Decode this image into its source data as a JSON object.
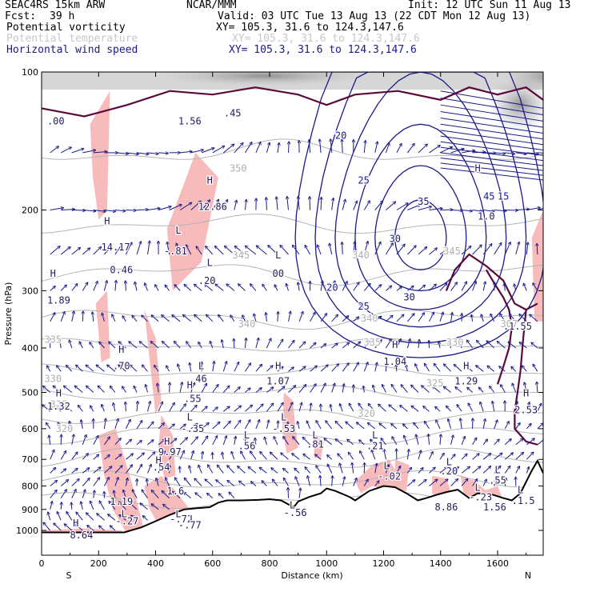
{
  "header": {
    "model": "SEAC4RS 15km ARW",
    "org": "NCAR/MMM",
    "init": "Init: 12 UTC Sun 11 Aug 13",
    "fcst_label": "Fcst:",
    "fcst_value": "39 h",
    "valid": "Valid: 03 UTC Tue 13 Aug 13 (22 CDT Mon 12 Aug 13)",
    "fields": [
      {
        "name": "Potential vorticity",
        "xy": "XY= 105.3, 31.6 to 124.3,147.6",
        "color": "#000000"
      },
      {
        "name": "Potential temperature",
        "xy": "XY= 105.3, 31.6 to 124.3,147.6",
        "color": "#c8c8c8"
      },
      {
        "name": "Horizontal wind speed",
        "xy": "XY= 105.3, 31.6 to 124.3,147.6",
        "color": "#1a1a8c"
      }
    ]
  },
  "chart_data": {
    "type": "contour",
    "xlabel": "Distance (km)",
    "ylabel": "Pressure (hPa)",
    "xlim": [
      0,
      1760
    ],
    "ylim": [
      1050,
      100
    ],
    "x_ticks": [
      0,
      200,
      400,
      600,
      800,
      1000,
      1200,
      1400,
      1600
    ],
    "y_ticks": [
      100,
      200,
      300,
      400,
      500,
      600,
      700,
      800,
      900,
      1000
    ],
    "y_log_scale": true,
    "x_end_labels": [
      "S",
      "N"
    ],
    "colors": {
      "terrain": "#000000",
      "theta": "#b4b4b4",
      "wind": "#1a1a8c",
      "pv_fill": "#f7b7b7",
      "pv_contour": "#5a0a3a",
      "vectors": "#1a1a8c"
    },
    "theta_labels": [
      {
        "text": "335",
        "x": 40,
        "p": 390
      },
      {
        "text": "330",
        "x": 40,
        "p": 475
      },
      {
        "text": "325",
        "x": 60,
        "p": 540
      },
      {
        "text": "320",
        "x": 80,
        "p": 610
      },
      {
        "text": "345",
        "x": 700,
        "p": 255
      },
      {
        "text": "340",
        "x": 720,
        "p": 360
      },
      {
        "text": "340",
        "x": 1120,
        "p": 255
      },
      {
        "text": "340",
        "x": 1150,
        "p": 350
      },
      {
        "text": "335",
        "x": 1160,
        "p": 395
      },
      {
        "text": "330",
        "x": 1450,
        "p": 395
      },
      {
        "text": "325",
        "x": 1380,
        "p": 485
      },
      {
        "text": "320",
        "x": 1140,
        "p": 565
      },
      {
        "text": "307",
        "x": 1640,
        "p": 360
      },
      {
        "text": "345",
        "x": 1440,
        "p": 250
      },
      {
        "text": "350",
        "x": 690,
        "p": 165
      }
    ],
    "wind_labels": [
      {
        "text": "20",
        "x": 1050,
        "p": 140
      },
      {
        "text": "25",
        "x": 1130,
        "p": 175
      },
      {
        "text": "30",
        "x": 1240,
        "p": 235
      },
      {
        "text": "35",
        "x": 1340,
        "p": 195
      },
      {
        "text": "20",
        "x": 1020,
        "p": 300
      },
      {
        "text": "25",
        "x": 1130,
        "p": 330
      },
      {
        "text": "30",
        "x": 1290,
        "p": 315
      },
      {
        "text": "45",
        "x": 1570,
        "p": 190
      },
      {
        "text": "15",
        "x": 1620,
        "p": 190
      }
    ],
    "pv_labels": [
      {
        "text": "H",
        "x": 40,
        "p": 280
      },
      {
        "text": "1.89",
        "x": 60,
        "p": 320
      },
      {
        "text": "H",
        "x": 230,
        "p": 215
      },
      {
        "text": "14.17",
        "x": 260,
        "p": 245
      },
      {
        "text": "0.46",
        "x": 280,
        "p": 275
      },
      {
        "text": "H",
        "x": 590,
        "p": 175
      },
      {
        "text": "12.86",
        "x": 600,
        "p": 200
      },
      {
        "text": "L",
        "x": 480,
        "p": 225
      },
      {
        "text": "-.81",
        "x": 470,
        "p": 250
      },
      {
        "text": "L",
        "x": 590,
        "p": 265
      },
      {
        "text": ".20",
        "x": 580,
        "p": 290
      },
      {
        "text": "L",
        "x": 830,
        "p": 255
      },
      {
        "text": "00",
        "x": 830,
        "p": 280
      },
      {
        "text": "H",
        "x": 280,
        "p": 410
      },
      {
        "text": ".70",
        "x": 280,
        "p": 445
      },
      {
        "text": "L",
        "x": 560,
        "p": 445
      },
      {
        "text": ".46",
        "x": 550,
        "p": 475
      },
      {
        "text": "H",
        "x": 520,
        "p": 490
      },
      {
        "text": ".55",
        "x": 530,
        "p": 525
      },
      {
        "text": "H",
        "x": 830,
        "p": 445
      },
      {
        "text": "1.07",
        "x": 830,
        "p": 480
      },
      {
        "text": "H",
        "x": 1240,
        "p": 400
      },
      {
        "text": "1.04",
        "x": 1240,
        "p": 435
      },
      {
        "text": "H",
        "x": 1490,
        "p": 445
      },
      {
        "text": "1.29",
        "x": 1490,
        "p": 480
      },
      {
        "text": "H",
        "x": 1700,
        "p": 510
      },
      {
        "text": "2.53",
        "x": 1700,
        "p": 555
      },
      {
        "text": "H",
        "x": 60,
        "p": 510
      },
      {
        "text": "1.32",
        "x": 60,
        "p": 545
      },
      {
        "text": "L",
        "x": 520,
        "p": 575
      },
      {
        "text": "-.35",
        "x": 530,
        "p": 610
      },
      {
        "text": "L",
        "x": 850,
        "p": 575
      },
      {
        "text": "-.53",
        "x": 850,
        "p": 610
      },
      {
        "text": "L",
        "x": 720,
        "p": 630
      },
      {
        "text": ".56",
        "x": 720,
        "p": 665
      },
      {
        "text": "L",
        "x": 960,
        "p": 630
      },
      {
        "text": ".81",
        "x": 960,
        "p": 660
      },
      {
        "text": "L",
        "x": 1170,
        "p": 630
      },
      {
        "text": ".21",
        "x": 1170,
        "p": 665
      },
      {
        "text": "H",
        "x": 440,
        "p": 650
      },
      {
        "text": "9.97",
        "x": 450,
        "p": 685
      },
      {
        "text": "H",
        "x": 410,
        "p": 715
      },
      {
        "text": ".54",
        "x": 420,
        "p": 740
      },
      {
        "text": "L",
        "x": 1210,
        "p": 735
      },
      {
        "text": "-.02",
        "x": 1220,
        "p": 775
      },
      {
        "text": "L",
        "x": 1430,
        "p": 720
      },
      {
        "text": ".20",
        "x": 1430,
        "p": 755
      },
      {
        "text": "L",
        "x": 1600,
        "p": 750
      },
      {
        "text": ".55",
        "x": 1600,
        "p": 790
      },
      {
        "text": "L",
        "x": 1530,
        "p": 820
      },
      {
        "text": "-.23",
        "x": 1540,
        "p": 860
      },
      {
        "text": "L",
        "x": 1680,
        "p": 830
      },
      {
        "text": ".1.5",
        "x": 1690,
        "p": 875
      },
      {
        "text": "1.19",
        "x": 280,
        "p": 880
      },
      {
        "text": "1.6",
        "x": 470,
        "p": 835
      },
      {
        "text": "L",
        "x": 290,
        "p": 935
      },
      {
        "text": "-.27",
        "x": 300,
        "p": 970
      },
      {
        "text": "L",
        "x": 480,
        "p": 935
      },
      {
        "text": "-.72",
        "x": 490,
        "p": 960
      },
      {
        "text": "L",
        "x": 530,
        "p": 960
      },
      {
        "text": "-.77",
        "x": 520,
        "p": 990
      },
      {
        "text": "L",
        "x": 880,
        "p": 895
      },
      {
        "text": "-.56",
        "x": 890,
        "p": 930
      },
      {
        "text": "8.86",
        "x": 1420,
        "p": 905
      },
      {
        "text": "1.56",
        "x": 1590,
        "p": 905
      },
      {
        "text": "H",
        "x": 120,
        "p": 980
      },
      {
        "text": "8.64",
        "x": 140,
        "p": 1040
      },
      {
        "text": "H",
        "x": 1530,
        "p": 165
      },
      {
        "text": "1.0",
        "x": 1560,
        "p": 210
      },
      {
        "text": ".1.55",
        "x": 1670,
        "p": 365
      },
      {
        "text": "1.56",
        "x": 520,
        "p": 130
      },
      {
        "text": ".00",
        "x": 50,
        "p": 130
      },
      {
        "text": ".45",
        "x": 670,
        "p": 125
      }
    ],
    "terrain_profile": [
      [
        0,
        1010
      ],
      [
        100,
        1010
      ],
      [
        200,
        1010
      ],
      [
        290,
        1010
      ],
      [
        350,
        985
      ],
      [
        400,
        955
      ],
      [
        450,
        925
      ],
      [
        500,
        900
      ],
      [
        540,
        895
      ],
      [
        590,
        890
      ],
      [
        620,
        870
      ],
      [
        650,
        860
      ],
      [
        700,
        860
      ],
      [
        760,
        858
      ],
      [
        800,
        855
      ],
      [
        840,
        860
      ],
      [
        870,
        880
      ],
      [
        885,
        890
      ],
      [
        900,
        865
      ],
      [
        940,
        845
      ],
      [
        980,
        830
      ],
      [
        1000,
        810
      ],
      [
        1030,
        820
      ],
      [
        1080,
        845
      ],
      [
        1100,
        860
      ],
      [
        1150,
        820
      ],
      [
        1200,
        800
      ],
      [
        1240,
        805
      ],
      [
        1280,
        830
      ],
      [
        1320,
        860
      ],
      [
        1350,
        850
      ],
      [
        1390,
        835
      ],
      [
        1420,
        825
      ],
      [
        1460,
        815
      ],
      [
        1500,
        850
      ],
      [
        1530,
        830
      ],
      [
        1580,
        835
      ],
      [
        1620,
        850
      ],
      [
        1650,
        860
      ],
      [
        1680,
        830
      ],
      [
        1720,
        740
      ],
      [
        1740,
        705
      ],
      [
        1760,
        750
      ]
    ]
  }
}
